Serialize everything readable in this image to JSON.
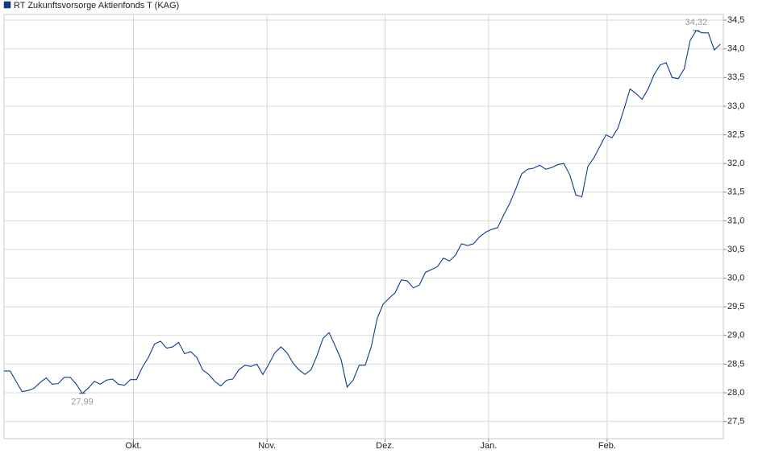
{
  "chart_data": {
    "type": "line",
    "series": [
      {
        "name": "RT Zukunftsvorsorge Aktienfonds T (KAG)",
        "color": "#0b3c8c",
        "values": [
          28.38,
          28.38,
          28.2,
          28.02,
          28.04,
          28.08,
          28.18,
          28.26,
          28.15,
          28.16,
          28.27,
          28.27,
          28.15,
          27.99,
          28.08,
          28.2,
          28.15,
          28.22,
          28.24,
          28.15,
          28.13,
          28.23,
          28.23,
          28.45,
          28.62,
          28.85,
          28.9,
          28.78,
          28.8,
          28.88,
          28.68,
          28.72,
          28.62,
          28.4,
          28.32,
          28.2,
          28.12,
          28.22,
          28.24,
          28.4,
          28.48,
          28.46,
          28.5,
          28.32,
          28.5,
          28.7,
          28.8,
          28.7,
          28.52,
          28.4,
          28.32,
          28.4,
          28.65,
          28.95,
          29.05,
          28.82,
          28.58,
          28.1,
          28.22,
          28.48,
          28.48,
          28.8,
          29.3,
          29.55,
          29.65,
          29.75,
          29.97,
          29.95,
          29.83,
          29.88,
          30.1,
          30.15,
          30.2,
          30.35,
          30.3,
          30.4,
          30.6,
          30.57,
          30.6,
          30.72,
          30.8,
          30.85,
          30.88,
          31.1,
          31.3,
          31.55,
          31.82,
          31.9,
          31.92,
          31.97,
          31.9,
          31.93,
          31.98,
          32.0,
          31.8,
          31.45,
          31.42,
          31.95,
          32.1,
          32.3,
          32.5,
          32.45,
          32.62,
          32.95,
          33.3,
          33.22,
          33.12,
          33.3,
          33.55,
          33.72,
          33.76,
          33.5,
          33.48,
          33.65,
          34.15,
          34.32,
          34.28,
          34.28,
          33.98,
          34.08
        ]
      }
    ],
    "xlim": [
      0,
      119.5
    ],
    "xticks": [
      {
        "value": 21.5,
        "label": "Okt."
      },
      {
        "value": 43.7,
        "label": "Nov."
      },
      {
        "value": 63.3,
        "label": "Dez."
      },
      {
        "value": 80.5,
        "label": "Jan."
      },
      {
        "value": 100.2,
        "label": "Feb."
      }
    ],
    "ylim": [
      27.2,
      34.6
    ],
    "yticks": [
      {
        "value": 27.5,
        "label": "27,5"
      },
      {
        "value": 28,
        "label": "28,0"
      },
      {
        "value": 28.5,
        "label": "28,5"
      },
      {
        "value": 29,
        "label": "29,0"
      },
      {
        "value": 29.5,
        "label": "29,5"
      },
      {
        "value": 30,
        "label": "30,0"
      },
      {
        "value": 30.5,
        "label": "30,5"
      },
      {
        "value": 31,
        "label": "31,0"
      },
      {
        "value": 31.5,
        "label": "31,5"
      },
      {
        "value": 32,
        "label": "32,0"
      },
      {
        "value": 32.5,
        "label": "32,5"
      },
      {
        "value": 33,
        "label": "33,0"
      },
      {
        "value": 33.5,
        "label": "33,5"
      },
      {
        "value": 34,
        "label": "34,0"
      },
      {
        "value": 34.5,
        "label": "34,5"
      }
    ],
    "annotations": [
      {
        "x": 13,
        "value": 27.99,
        "label": "27,99",
        "position": "below"
      },
      {
        "x": 115,
        "value": 34.32,
        "label": "34,32",
        "position": "above"
      }
    ],
    "grid": true,
    "legend": "top-left"
  }
}
